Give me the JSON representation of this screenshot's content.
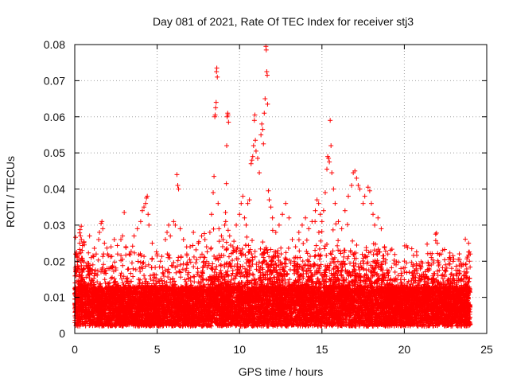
{
  "chart_data": {
    "type": "scatter",
    "title": "Day 081 of 2021, Rate Of TEC Index for receiver stj3",
    "xlabel": "GPS time / hours",
    "ylabel": "ROTI / TECUs",
    "xlim": [
      0,
      25
    ],
    "ylim": [
      0,
      0.08
    ],
    "xticks": [
      0,
      5,
      10,
      15,
      20,
      25
    ],
    "xtick_labels": [
      "0",
      "5",
      "10",
      "15",
      "20",
      "25"
    ],
    "yticks": [
      0,
      0.01,
      0.02,
      0.03,
      0.04,
      0.05,
      0.06,
      0.07,
      0.08
    ],
    "ytick_labels": [
      "0",
      "0.01",
      "0.02",
      "0.03",
      "0.04",
      "0.05",
      "0.06",
      "0.07",
      "0.08"
    ],
    "grid": true,
    "marker": "plus",
    "color": "#ff0000",
    "series": [
      {
        "name": "ROTI",
        "points": [
          [
            0.05,
            0.022
          ],
          [
            0.1,
            0.0225
          ],
          [
            0.15,
            0.021
          ],
          [
            0.2,
            0.018
          ],
          [
            0.3,
            0.025
          ],
          [
            0.35,
            0.027
          ],
          [
            0.4,
            0.026
          ],
          [
            0.45,
            0.023
          ],
          [
            0.9,
            0.027
          ],
          [
            1.0,
            0.021
          ],
          [
            1.1,
            0.019
          ],
          [
            1.3,
            0.022
          ],
          [
            1.45,
            0.026
          ],
          [
            1.5,
            0.028
          ],
          [
            1.6,
            0.0305
          ],
          [
            1.65,
            0.031
          ],
          [
            1.7,
            0.029
          ],
          [
            1.8,
            0.025
          ],
          [
            2.0,
            0.022
          ],
          [
            2.2,
            0.024
          ],
          [
            2.4,
            0.026
          ],
          [
            2.6,
            0.022
          ],
          [
            2.8,
            0.026
          ],
          [
            2.9,
            0.027
          ],
          [
            3.0,
            0.0335
          ],
          [
            3.1,
            0.024
          ],
          [
            3.3,
            0.022
          ],
          [
            3.6,
            0.027
          ],
          [
            3.8,
            0.029
          ],
          [
            4.0,
            0.031
          ],
          [
            4.1,
            0.034
          ],
          [
            4.2,
            0.035
          ],
          [
            4.3,
            0.036
          ],
          [
            4.35,
            0.0375
          ],
          [
            4.4,
            0.038
          ],
          [
            4.45,
            0.033
          ],
          [
            4.5,
            0.03
          ],
          [
            4.7,
            0.025
          ],
          [
            5.0,
            0.022
          ],
          [
            5.2,
            0.02
          ],
          [
            5.5,
            0.026
          ],
          [
            5.6,
            0.028
          ],
          [
            5.7,
            0.03
          ],
          [
            5.8,
            0.027
          ],
          [
            6.0,
            0.031
          ],
          [
            6.1,
            0.03
          ],
          [
            6.2,
            0.044
          ],
          [
            6.25,
            0.041
          ],
          [
            6.3,
            0.04
          ],
          [
            6.4,
            0.029
          ],
          [
            6.6,
            0.026
          ],
          [
            6.8,
            0.022
          ],
          [
            7.0,
            0.024
          ],
          [
            7.2,
            0.028
          ],
          [
            7.5,
            0.025
          ],
          [
            7.7,
            0.027
          ],
          [
            7.9,
            0.026
          ],
          [
            8.0,
            0.024
          ],
          [
            8.2,
            0.028
          ],
          [
            8.3,
            0.033
          ],
          [
            8.4,
            0.039
          ],
          [
            8.45,
            0.0435
          ],
          [
            8.5,
            0.06
          ],
          [
            8.52,
            0.0605
          ],
          [
            8.55,
            0.0625
          ],
          [
            8.58,
            0.064
          ],
          [
            8.6,
            0.0725
          ],
          [
            8.62,
            0.0735
          ],
          [
            8.65,
            0.071
          ],
          [
            8.7,
            0.036
          ],
          [
            8.75,
            0.029
          ],
          [
            8.9,
            0.027
          ],
          [
            9.0,
            0.026
          ],
          [
            9.1,
            0.03
          ],
          [
            9.15,
            0.0335
          ],
          [
            9.2,
            0.0415
          ],
          [
            9.22,
            0.052
          ],
          [
            9.25,
            0.06
          ],
          [
            9.28,
            0.061
          ],
          [
            9.3,
            0.0605
          ],
          [
            9.33,
            0.0585
          ],
          [
            9.4,
            0.027
          ],
          [
            9.6,
            0.024
          ],
          [
            9.8,
            0.03
          ],
          [
            10.0,
            0.033
          ],
          [
            10.1,
            0.036
          ],
          [
            10.2,
            0.038
          ],
          [
            10.3,
            0.032
          ],
          [
            10.4,
            0.03
          ],
          [
            10.5,
            0.036
          ],
          [
            10.6,
            0.037
          ],
          [
            10.7,
            0.047
          ],
          [
            10.75,
            0.048
          ],
          [
            10.8,
            0.049
          ],
          [
            10.85,
            0.052
          ],
          [
            10.9,
            0.059
          ],
          [
            10.93,
            0.0605
          ],
          [
            10.96,
            0.0535
          ],
          [
            11.0,
            0.0505
          ],
          [
            11.1,
            0.0485
          ],
          [
            11.2,
            0.0445
          ],
          [
            11.3,
            0.055
          ],
          [
            11.35,
            0.058
          ],
          [
            11.4,
            0.0565
          ],
          [
            11.45,
            0.0525
          ],
          [
            11.5,
            0.061
          ],
          [
            11.55,
            0.065
          ],
          [
            11.6,
            0.0795
          ],
          [
            11.62,
            0.0785
          ],
          [
            11.65,
            0.0725
          ],
          [
            11.68,
            0.0715
          ],
          [
            11.7,
            0.0635
          ],
          [
            11.75,
            0.0395
          ],
          [
            11.8,
            0.037
          ],
          [
            11.9,
            0.035
          ],
          [
            12.0,
            0.032
          ],
          [
            12.2,
            0.028
          ],
          [
            12.4,
            0.03
          ],
          [
            12.6,
            0.033
          ],
          [
            12.8,
            0.036
          ],
          [
            13.0,
            0.032
          ],
          [
            13.2,
            0.026
          ],
          [
            13.4,
            0.024
          ],
          [
            13.6,
            0.028
          ],
          [
            13.8,
            0.03
          ],
          [
            14.0,
            0.032
          ],
          [
            14.2,
            0.029
          ],
          [
            14.4,
            0.031
          ],
          [
            14.6,
            0.034
          ],
          [
            14.7,
            0.037
          ],
          [
            14.8,
            0.036
          ],
          [
            14.9,
            0.033
          ],
          [
            15.0,
            0.031
          ],
          [
            15.1,
            0.034
          ],
          [
            15.2,
            0.039
          ],
          [
            15.3,
            0.0455
          ],
          [
            15.35,
            0.049
          ],
          [
            15.4,
            0.0485
          ],
          [
            15.45,
            0.0475
          ],
          [
            15.5,
            0.059
          ],
          [
            15.55,
            0.052
          ],
          [
            15.6,
            0.0445
          ],
          [
            15.7,
            0.04
          ],
          [
            15.8,
            0.036
          ],
          [
            16.0,
            0.031
          ],
          [
            16.2,
            0.029
          ],
          [
            16.4,
            0.034
          ],
          [
            16.6,
            0.038
          ],
          [
            16.8,
            0.041
          ],
          [
            16.9,
            0.0445
          ],
          [
            17.0,
            0.045
          ],
          [
            17.1,
            0.043
          ],
          [
            17.2,
            0.041
          ],
          [
            17.3,
            0.04
          ],
          [
            17.5,
            0.036
          ],
          [
            17.6,
            0.038
          ],
          [
            17.8,
            0.0405
          ],
          [
            17.9,
            0.0395
          ],
          [
            18.0,
            0.036
          ],
          [
            18.1,
            0.033
          ],
          [
            18.2,
            0.03
          ],
          [
            18.4,
            0.032
          ],
          [
            18.6,
            0.029
          ],
          [
            18.8,
            0.024
          ],
          [
            19.0,
            0.022
          ],
          [
            19.5,
            0.019
          ],
          [
            20.0,
            0.017
          ],
          [
            20.5,
            0.016
          ],
          [
            21.0,
            0.015
          ],
          [
            21.5,
            0.018
          ],
          [
            21.9,
            0.0275
          ],
          [
            21.95,
            0.0278
          ],
          [
            22.0,
            0.025
          ],
          [
            22.5,
            0.019
          ],
          [
            23.0,
            0.016
          ],
          [
            23.5,
            0.019
          ],
          [
            23.9,
            0.025
          ],
          [
            24.0,
            0.022
          ],
          [
            23.95,
            0.02
          ],
          [
            23.8,
            0.017
          ]
        ]
      }
    ]
  }
}
